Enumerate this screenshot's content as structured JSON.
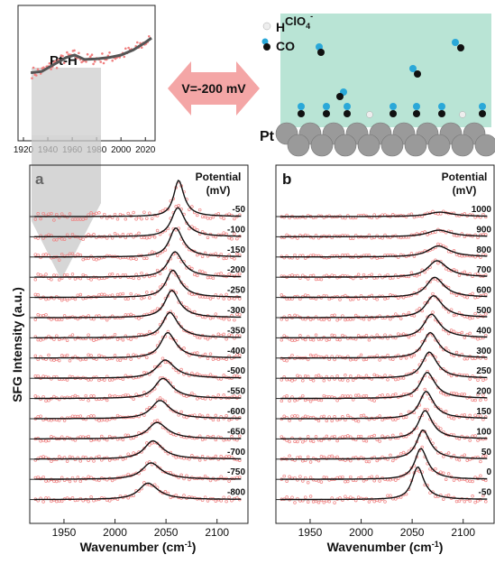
{
  "chart_data": [
    {
      "type": "line",
      "panel": "inset",
      "title": "Pt-H",
      "x_ticks": [
        1920,
        1940,
        1960,
        1980,
        2000,
        2020
      ],
      "xlim": [
        1920,
        2025
      ],
      "series": [
        {
          "kind": "fit_curve",
          "x": [
            1926,
            1935,
            1945,
            1955,
            1962,
            1970,
            1980,
            1990,
            2000,
            2010,
            2020,
            2025
          ],
          "y": [
            0.42,
            0.44,
            0.55,
            0.66,
            0.7,
            0.63,
            0.64,
            0.66,
            0.7,
            0.78,
            0.9,
            0.97
          ]
        }
      ],
      "highlight_range": [
        1927,
        1983
      ]
    },
    {
      "type": "line",
      "panel": "a",
      "panel_label": "a",
      "ylabel": "SFG Intensity (a.u.)",
      "xlabel": "Wavenumber (cm⁻¹)",
      "x_ticks": [
        1950,
        2000,
        2050,
        2100
      ],
      "xlim": [
        1920,
        2125
      ],
      "legend_title": [
        "Potential",
        "(mV)"
      ],
      "potentials": [
        "-50",
        "-100",
        "-150",
        "-200",
        "-250",
        "-300",
        "-350",
        "-400",
        "-500",
        "-550",
        "-600",
        "-650",
        "-700",
        "-750",
        "-800"
      ],
      "peak_center": [
        2062,
        2061,
        2059,
        2058,
        2056,
        2055,
        2053,
        2051,
        2048,
        2046,
        2043,
        2040,
        2036,
        2034,
        2031
      ],
      "peak_height": [
        1.0,
        0.8,
        0.8,
        0.7,
        0.75,
        0.75,
        0.7,
        0.7,
        0.5,
        0.55,
        0.5,
        0.45,
        0.5,
        0.45,
        0.45
      ]
    },
    {
      "type": "line",
      "panel": "b",
      "panel_label": "b",
      "xlabel": "Wavenumber (cm⁻¹)",
      "x_ticks": [
        1950,
        2000,
        2050,
        2100
      ],
      "xlim": [
        1920,
        2125
      ],
      "legend_title": [
        "Potential",
        "(mV)"
      ],
      "potentials": [
        "1000",
        "900",
        "800",
        "700",
        "600",
        "500",
        "400",
        "300",
        "250",
        "200",
        "150",
        "100",
        "50",
        "0",
        "-50"
      ],
      "peak_center": [
        2075,
        2074,
        2074,
        2073,
        2071,
        2070,
        2068,
        2067,
        2066,
        2064,
        2063,
        2062,
        2060,
        2058,
        2055
      ],
      "peak_height": [
        0.12,
        0.18,
        0.3,
        0.45,
        0.55,
        0.6,
        0.65,
        0.7,
        0.72,
        0.72,
        0.75,
        0.78,
        0.8,
        0.85,
        0.9
      ]
    }
  ],
  "schematic": {
    "arrow_label": "V=-200 mV",
    "legend": {
      "h": "H",
      "co": "CO"
    },
    "electrolyte_label": "ClO4-",
    "electrode_label": "Pt",
    "colors": {
      "electrolyte": "#b9e4d5",
      "arrow": "#f4a6a6",
      "pt_atom": "#9a9a9a",
      "co_top": "#2aa8d8",
      "co_bottom": "#111111",
      "h_atom": "#eeeeee"
    }
  },
  "colors": {
    "data_points": "#f08080",
    "fit_line": "#111111",
    "shade": "#cccccc"
  }
}
